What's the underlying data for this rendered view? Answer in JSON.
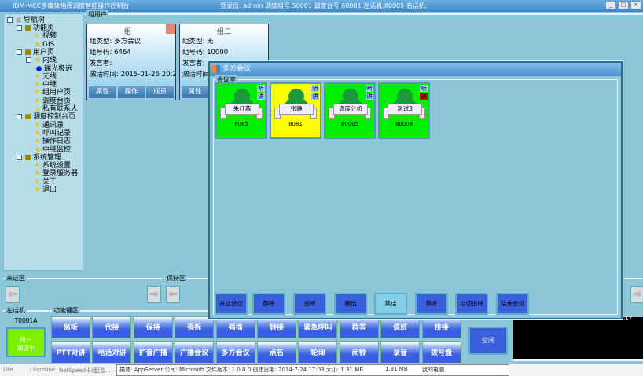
{
  "window": {
    "title": "IDM-MCC多媒体指挥调度智能操作控制台",
    "user_info": "登录员: admin  调度组号:50001  调度台号:60001  左话机:80005  右话机:"
  },
  "tree": {
    "root": "导航树",
    "items": [
      {
        "label": "功能页",
        "level": 1,
        "type": "folder"
      },
      {
        "label": "视频",
        "level": 2,
        "type": "star"
      },
      {
        "label": "GIS",
        "level": 2,
        "type": "star"
      },
      {
        "label": "用户页",
        "level": 1,
        "type": "folder"
      },
      {
        "label": "内线",
        "level": 2,
        "type": "star"
      },
      {
        "label": "瑞光极远",
        "level": 3,
        "type": "dot"
      },
      {
        "label": "无线",
        "level": 2,
        "type": "star"
      },
      {
        "label": "中继",
        "level": 2,
        "type": "star"
      },
      {
        "label": "组用户页",
        "level": 2,
        "type": "star"
      },
      {
        "label": "调度台页",
        "level": 2,
        "type": "star"
      },
      {
        "label": "私有联系人",
        "level": 2,
        "type": "star"
      },
      {
        "label": "调度控制台页",
        "level": 1,
        "type": "folder"
      },
      {
        "label": "通讯录",
        "level": 2,
        "type": "star"
      },
      {
        "label": "呼叫记录",
        "level": 2,
        "type": "star"
      },
      {
        "label": "操作日志",
        "level": 2,
        "type": "star"
      },
      {
        "label": "中继监控",
        "level": 2,
        "type": "star"
      },
      {
        "label": "系统管理",
        "level": 1,
        "type": "folder"
      },
      {
        "label": "系统设置",
        "level": 2,
        "type": "star"
      },
      {
        "label": "登录服务器",
        "level": 2,
        "type": "star"
      },
      {
        "label": "关于",
        "level": 2,
        "type": "star"
      },
      {
        "label": "退出",
        "level": 2,
        "type": "star"
      }
    ]
  },
  "group_panel": {
    "legend": "组用户",
    "cards": [
      {
        "title": "组一",
        "type": "组类型: 多方会议",
        "number": "组号码: 6464",
        "speaker": "发言者:",
        "time": "激活时间: 2015-01-26 20:2",
        "buttons": [
          "属性",
          "操作",
          "成员"
        ]
      },
      {
        "title": "组二",
        "type": "组类型: 无",
        "number": "组号码: 10000",
        "speaker": "发言者:",
        "time": "激活时间:",
        "buttons": [
          "属性"
        ]
      }
    ]
  },
  "dialog": {
    "title": "多方会议",
    "legend": "会议室",
    "members": [
      {
        "name": "朱红燕",
        "number": "8085",
        "color": "#00ee00",
        "listen": "听",
        "speak": "讲",
        "speak_muted": false
      },
      {
        "name": "张静",
        "number": "8081",
        "color": "#ffff00",
        "listen": "听",
        "speak": "讲",
        "speak_muted": false
      },
      {
        "name": "调度分机",
        "number": "80005",
        "color": "#00ee00",
        "listen": "听",
        "speak": "讲",
        "speak_muted": false
      },
      {
        "name": "测试3",
        "number": "80008",
        "color": "#00ee00",
        "listen": "听",
        "speak": "讲",
        "speak_muted": true
      }
    ],
    "buttons": [
      "开启会议",
      "群呼",
      "追呼",
      "踢出",
      "禁话",
      "禁听",
      "自动追呼",
      "结束会议"
    ],
    "active_button": "禁话"
  },
  "incoming": {
    "legend": "来话区"
  },
  "hold": {
    "legend": "保持区"
  },
  "left_phone": {
    "legend": "左话机",
    "id": "T0001A",
    "status_line1": "组一",
    "status_line2": "通话中"
  },
  "function_keys": {
    "legend": "功能键区",
    "row1": [
      "监听",
      "代接",
      "保持",
      "强拆",
      "强插",
      "转接",
      "紧急呼叫",
      "群答",
      "值班",
      "桥接"
    ],
    "row2": [
      "PTT对讲",
      "电话对讲",
      "扩音广播",
      "广播会议",
      "多方会议",
      "点名",
      "轮询",
      "闭铃",
      "录音",
      "拨号盘"
    ]
  },
  "right_phone": {
    "status": "空闲"
  },
  "clock_fragment": ":17",
  "taskbar": {
    "items": [
      "Lite",
      "Linphone",
      "NetSpeed卡组",
      "组监..."
    ],
    "status": "描述: AppServer 公司: Microsoft 文件版本: 1.0.0.0 创建日期: 2014-7-24 17:03 大小: 1.31 MB",
    "size": "1.31 MB",
    "computer": "我的电脑"
  }
}
